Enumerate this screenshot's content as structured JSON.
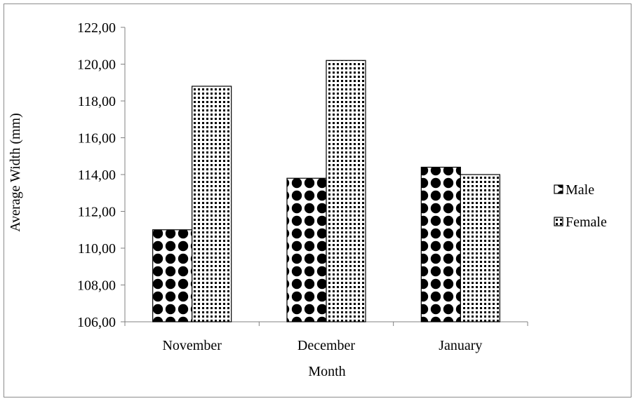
{
  "chart_data": {
    "type": "bar",
    "categories": [
      "November",
      "December",
      "January"
    ],
    "series": [
      {
        "name": "Male",
        "values": [
          111.0,
          113.8,
          114.4
        ]
      },
      {
        "name": "Female",
        "values": [
          118.8,
          120.2,
          114.0
        ]
      }
    ],
    "title": "",
    "xlabel": "Month",
    "ylabel": "Average Width (mm)",
    "ylim": [
      106,
      122
    ],
    "yticks": [
      "106,00",
      "108,00",
      "110,00",
      "112,00",
      "114,00",
      "116,00",
      "118,00",
      "120,00",
      "122,00"
    ],
    "grid": false,
    "legend_position": "right"
  }
}
